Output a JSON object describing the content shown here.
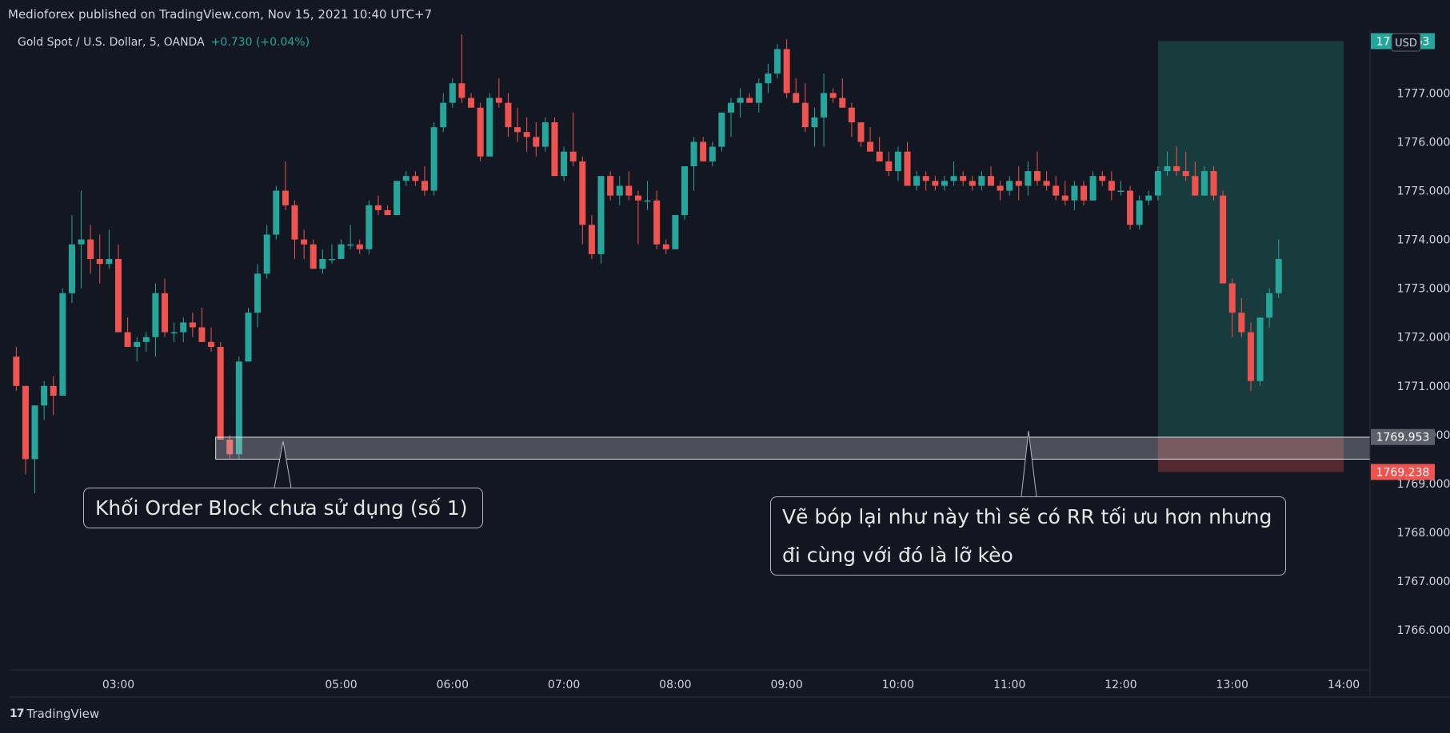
{
  "header": {
    "published": "Medioforex published on TradingView.com, Nov 15, 2021 10:40 UTC+7"
  },
  "symbol": {
    "name": "Gold Spot / U.S. Dollar, 5, OANDA",
    "change": "+0.730 (+0.04%)"
  },
  "currency_badge": "USD",
  "price_tags": {
    "top": "1778.063",
    "zone_top": "1769.953",
    "zone_bottom": "1769.238"
  },
  "annotations": {
    "order_block": "Khối Order Block chưa sử dụng (số 1)",
    "note_line1": "Vẽ bóp lại như này thì sẽ có RR tối ưu hơn nhưng",
    "note_line2": "đi cùng với đó là lỡ kèo"
  },
  "footer": {
    "brand": "TradingView",
    "logo": "17"
  },
  "colors": {
    "up": "#26a69a",
    "down": "#ef5350",
    "background": "#131722",
    "target_zone": "#1b4a47",
    "stop_zone": "#5b2a30"
  },
  "chart_data": {
    "type": "candlestick",
    "title": "Gold Spot / U.S. Dollar, 5, OANDA",
    "ylim": [
      1765.2,
      1778.3
    ],
    "y_ticks": [
      1766,
      1767,
      1768,
      1769,
      1770,
      1771,
      1772,
      1773,
      1774,
      1775,
      1776,
      1777
    ],
    "x_ticks": [
      "03:00",
      "05:00",
      "06:00",
      "07:00",
      "08:00",
      "09:00",
      "10:00",
      "11:00",
      "12:00",
      "13:00",
      "14:00"
    ],
    "x_tick_times": [
      "03:00",
      "05:00",
      "06:00",
      "07:00",
      "08:00",
      "09:00",
      "10:00",
      "11:00",
      "12:00",
      "13:00",
      "14:00"
    ],
    "x_range": [
      "02:05",
      "14:20"
    ],
    "order_block_zone": [
      1769.5,
      1769.95
    ],
    "position": {
      "entry": 1769.953,
      "stop": 1769.238,
      "target": 1778.063,
      "start": "12:20",
      "end": "14:00"
    },
    "candles_note": "o,h,l,c per 5-minute bar",
    "candles": [
      [
        "02:05",
        1771.6,
        1771.8,
        1770.9,
        1771.0
      ],
      [
        "02:10",
        1771.0,
        1771.0,
        1769.2,
        1769.5
      ],
      [
        "02:15",
        1769.5,
        1770.6,
        1768.8,
        1770.6
      ],
      [
        "02:20",
        1770.6,
        1771.1,
        1770.3,
        1771.0
      ],
      [
        "02:25",
        1771.0,
        1771.2,
        1770.4,
        1770.8
      ],
      [
        "02:30",
        1770.8,
        1773.0,
        1770.8,
        1772.9
      ],
      [
        "02:35",
        1772.9,
        1774.5,
        1772.7,
        1773.9
      ],
      [
        "02:40",
        1773.9,
        1775.0,
        1773.0,
        1774.0
      ],
      [
        "02:45",
        1774.0,
        1774.3,
        1773.3,
        1773.6
      ],
      [
        "02:50",
        1773.6,
        1774.1,
        1773.1,
        1773.5
      ],
      [
        "02:55",
        1773.5,
        1774.2,
        1773.4,
        1773.6
      ],
      [
        "03:00",
        1773.6,
        1773.9,
        1772.1,
        1772.1
      ],
      [
        "03:05",
        1772.1,
        1772.4,
        1771.8,
        1771.8
      ],
      [
        "03:10",
        1771.8,
        1772.0,
        1771.5,
        1771.9
      ],
      [
        "03:15",
        1771.9,
        1772.1,
        1771.7,
        1772.0
      ],
      [
        "03:20",
        1772.0,
        1773.1,
        1771.6,
        1772.9
      ],
      [
        "03:25",
        1772.9,
        1773.2,
        1772.0,
        1772.1
      ],
      [
        "03:30",
        1772.1,
        1772.3,
        1771.9,
        1772.1
      ],
      [
        "03:35",
        1772.1,
        1772.4,
        1771.9,
        1772.3
      ],
      [
        "03:40",
        1772.3,
        1772.5,
        1772.0,
        1772.2
      ],
      [
        "03:45",
        1772.2,
        1772.6,
        1771.9,
        1771.9
      ],
      [
        "03:50",
        1771.9,
        1772.2,
        1771.7,
        1771.8
      ],
      [
        "03:55",
        1771.8,
        1771.9,
        1769.9,
        1769.9
      ],
      [
        "04:00",
        1769.9,
        1770.0,
        1769.5,
        1769.6
      ],
      [
        "04:05",
        1769.6,
        1771.6,
        1769.5,
        1771.5
      ],
      [
        "04:10",
        1771.5,
        1772.6,
        1771.5,
        1772.5
      ],
      [
        "04:15",
        1772.5,
        1773.5,
        1772.2,
        1773.3
      ],
      [
        "04:20",
        1773.3,
        1774.3,
        1773.2,
        1774.1
      ],
      [
        "04:25",
        1774.1,
        1775.1,
        1774.0,
        1775.0
      ],
      [
        "04:30",
        1775.0,
        1775.6,
        1774.6,
        1774.7
      ],
      [
        "04:35",
        1774.7,
        1774.8,
        1773.6,
        1774.0
      ],
      [
        "04:40",
        1774.0,
        1774.2,
        1773.6,
        1773.9
      ],
      [
        "04:45",
        1773.9,
        1774.0,
        1773.4,
        1773.4
      ],
      [
        "04:50",
        1773.4,
        1773.8,
        1773.3,
        1773.6
      ],
      [
        "04:55",
        1773.6,
        1773.9,
        1773.5,
        1773.6
      ],
      [
        "05:00",
        1773.6,
        1774.0,
        1773.6,
        1773.9
      ],
      [
        "05:05",
        1773.9,
        1774.3,
        1773.8,
        1773.9
      ],
      [
        "05:10",
        1773.9,
        1774.0,
        1773.7,
        1773.8
      ],
      [
        "05:15",
        1773.8,
        1774.8,
        1773.7,
        1774.7
      ],
      [
        "05:20",
        1774.7,
        1774.9,
        1774.5,
        1774.6
      ],
      [
        "05:25",
        1774.6,
        1774.7,
        1774.5,
        1774.5
      ],
      [
        "05:30",
        1774.5,
        1775.2,
        1774.5,
        1775.2
      ],
      [
        "05:35",
        1775.2,
        1775.4,
        1775.1,
        1775.3
      ],
      [
        "05:40",
        1775.3,
        1775.4,
        1775.1,
        1775.2
      ],
      [
        "05:45",
        1775.2,
        1775.5,
        1774.9,
        1775.0
      ],
      [
        "05:50",
        1775.0,
        1776.4,
        1774.9,
        1776.3
      ],
      [
        "05:55",
        1776.3,
        1777.0,
        1776.2,
        1776.8
      ],
      [
        "06:00",
        1776.8,
        1777.3,
        1776.7,
        1777.2
      ],
      [
        "06:05",
        1777.2,
        1778.2,
        1776.8,
        1776.9
      ],
      [
        "06:10",
        1776.9,
        1777.0,
        1776.7,
        1776.7
      ],
      [
        "06:15",
        1776.7,
        1776.8,
        1775.6,
        1775.7
      ],
      [
        "06:20",
        1775.7,
        1777.0,
        1775.7,
        1776.9
      ],
      [
        "06:25",
        1776.9,
        1777.3,
        1776.7,
        1776.8
      ],
      [
        "06:30",
        1776.8,
        1777.0,
        1776.1,
        1776.3
      ],
      [
        "06:35",
        1776.3,
        1776.7,
        1776.0,
        1776.2
      ],
      [
        "06:40",
        1776.2,
        1776.5,
        1775.8,
        1776.1
      ],
      [
        "06:45",
        1776.1,
        1776.4,
        1775.7,
        1775.9
      ],
      [
        "06:50",
        1775.9,
        1776.5,
        1775.8,
        1776.4
      ],
      [
        "06:55",
        1776.4,
        1776.5,
        1775.3,
        1775.3
      ],
      [
        "07:00",
        1775.3,
        1775.9,
        1775.2,
        1775.8
      ],
      [
        "07:05",
        1775.8,
        1776.6,
        1775.5,
        1775.6
      ],
      [
        "07:10",
        1775.6,
        1775.7,
        1773.9,
        1774.3
      ],
      [
        "07:15",
        1774.3,
        1774.5,
        1773.6,
        1773.7
      ],
      [
        "07:20",
        1773.7,
        1775.3,
        1773.5,
        1775.3
      ],
      [
        "07:25",
        1775.3,
        1775.4,
        1774.8,
        1774.9
      ],
      [
        "07:30",
        1774.9,
        1775.3,
        1774.7,
        1775.1
      ],
      [
        "07:35",
        1775.1,
        1775.4,
        1774.8,
        1774.9
      ],
      [
        "07:40",
        1774.9,
        1775.0,
        1773.9,
        1774.8
      ],
      [
        "07:45",
        1774.8,
        1775.2,
        1774.6,
        1774.8
      ],
      [
        "07:50",
        1774.8,
        1775.0,
        1773.8,
        1773.9
      ],
      [
        "07:55",
        1773.9,
        1774.0,
        1773.7,
        1773.8
      ],
      [
        "08:00",
        1773.8,
        1774.5,
        1773.8,
        1774.5
      ],
      [
        "08:05",
        1774.5,
        1775.5,
        1774.4,
        1775.5
      ],
      [
        "08:10",
        1775.5,
        1776.1,
        1775.0,
        1776.0
      ],
      [
        "08:15",
        1776.0,
        1776.1,
        1775.6,
        1775.6
      ],
      [
        "08:20",
        1775.6,
        1776.0,
        1775.5,
        1775.9
      ],
      [
        "08:25",
        1775.9,
        1776.6,
        1775.8,
        1776.6
      ],
      [
        "08:30",
        1776.6,
        1776.9,
        1776.1,
        1776.8
      ],
      [
        "08:35",
        1776.8,
        1777.1,
        1776.5,
        1776.9
      ],
      [
        "08:40",
        1776.9,
        1777.0,
        1776.8,
        1776.8
      ],
      [
        "08:45",
        1776.8,
        1777.3,
        1776.6,
        1777.2
      ],
      [
        "08:50",
        1777.2,
        1777.6,
        1777.0,
        1777.4
      ],
      [
        "08:55",
        1777.4,
        1778.0,
        1777.3,
        1777.9
      ],
      [
        "09:00",
        1777.9,
        1778.1,
        1776.9,
        1777.0
      ],
      [
        "09:05",
        1777.0,
        1777.3,
        1776.9,
        1776.8
      ],
      [
        "09:10",
        1776.8,
        1777.2,
        1776.2,
        1776.3
      ],
      [
        "09:15",
        1776.3,
        1776.7,
        1775.9,
        1776.5
      ],
      [
        "09:20",
        1776.5,
        1777.4,
        1775.9,
        1777.0
      ],
      [
        "09:25",
        1777.0,
        1777.1,
        1776.8,
        1776.9
      ],
      [
        "09:30",
        1776.9,
        1777.3,
        1776.7,
        1776.7
      ],
      [
        "09:35",
        1776.7,
        1776.8,
        1776.1,
        1776.4
      ],
      [
        "09:40",
        1776.4,
        1776.4,
        1775.9,
        1776.0
      ],
      [
        "09:45",
        1776.0,
        1776.3,
        1775.8,
        1775.8
      ],
      [
        "09:50",
        1775.8,
        1776.1,
        1775.6,
        1775.6
      ],
      [
        "09:55",
        1775.6,
        1775.8,
        1775.3,
        1775.4
      ],
      [
        "10:00",
        1775.4,
        1775.9,
        1775.2,
        1775.8
      ],
      [
        "10:05",
        1775.8,
        1776.0,
        1775.1,
        1775.1
      ],
      [
        "10:10",
        1775.1,
        1775.4,
        1775.0,
        1775.3
      ],
      [
        "10:15",
        1775.3,
        1775.4,
        1775.0,
        1775.2
      ],
      [
        "10:20",
        1775.2,
        1775.3,
        1775.0,
        1775.1
      ],
      [
        "10:25",
        1775.1,
        1775.3,
        1775.0,
        1775.2
      ],
      [
        "10:30",
        1775.2,
        1775.6,
        1775.1,
        1775.3
      ],
      [
        "10:35",
        1775.3,
        1775.4,
        1775.1,
        1775.2
      ],
      [
        "10:40",
        1775.2,
        1775.3,
        1775.0,
        1775.1
      ],
      [
        "10:45",
        1775.1,
        1775.4,
        1775.0,
        1775.3
      ],
      [
        "10:50",
        1775.3,
        1775.5,
        1775.1,
        1775.1
      ],
      [
        "10:55",
        1775.1,
        1775.2,
        1774.8,
        1775.0
      ],
      [
        "11:00",
        1775.0,
        1775.3,
        1774.9,
        1775.2
      ],
      [
        "11:05",
        1775.2,
        1775.5,
        1774.8,
        1775.1
      ],
      [
        "11:10",
        1775.1,
        1775.6,
        1774.9,
        1775.4
      ],
      [
        "11:15",
        1775.4,
        1775.8,
        1775.1,
        1775.2
      ],
      [
        "11:20",
        1775.2,
        1775.4,
        1775.0,
        1775.1
      ],
      [
        "11:25",
        1775.1,
        1775.3,
        1774.8,
        1774.9
      ],
      [
        "11:30",
        1774.9,
        1775.2,
        1774.7,
        1774.8
      ],
      [
        "11:35",
        1774.8,
        1775.2,
        1774.6,
        1775.1
      ],
      [
        "11:40",
        1775.1,
        1775.2,
        1774.7,
        1774.8
      ],
      [
        "11:45",
        1774.8,
        1775.4,
        1774.8,
        1775.3
      ],
      [
        "11:50",
        1775.3,
        1775.4,
        1775.1,
        1775.2
      ],
      [
        "11:55",
        1775.2,
        1775.4,
        1774.8,
        1775.0
      ],
      [
        "12:00",
        1775.0,
        1775.2,
        1774.9,
        1775.0
      ],
      [
        "12:05",
        1775.0,
        1775.1,
        1774.2,
        1774.3
      ],
      [
        "12:10",
        1774.3,
        1774.9,
        1774.2,
        1774.8
      ],
      [
        "12:15",
        1774.8,
        1775.0,
        1774.7,
        1774.9
      ],
      [
        "12:20",
        1774.9,
        1775.5,
        1774.8,
        1775.4
      ],
      [
        "12:25",
        1775.4,
        1775.8,
        1775.3,
        1775.5
      ],
      [
        "12:30",
        1775.5,
        1775.9,
        1775.3,
        1775.4
      ],
      [
        "12:35",
        1775.4,
        1775.8,
        1775.2,
        1775.3
      ],
      [
        "12:40",
        1775.3,
        1775.6,
        1774.9,
        1774.9
      ],
      [
        "12:45",
        1774.9,
        1775.5,
        1774.9,
        1775.4
      ],
      [
        "12:50",
        1775.4,
        1775.5,
        1774.8,
        1774.9
      ],
      [
        "12:55",
        1774.9,
        1775.0,
        1773.1,
        1773.1
      ],
      [
        "13:00",
        1773.1,
        1773.2,
        1772.0,
        1772.5
      ],
      [
        "13:05",
        1772.5,
        1772.8,
        1772.0,
        1772.1
      ],
      [
        "13:10",
        1772.1,
        1772.3,
        1770.9,
        1771.1
      ],
      [
        "13:15",
        1771.1,
        1772.4,
        1771.0,
        1772.4
      ],
      [
        "13:20",
        1772.4,
        1773.0,
        1772.2,
        1772.9
      ],
      [
        "13:25",
        1772.9,
        1774.0,
        1772.8,
        1773.6
      ]
    ]
  }
}
